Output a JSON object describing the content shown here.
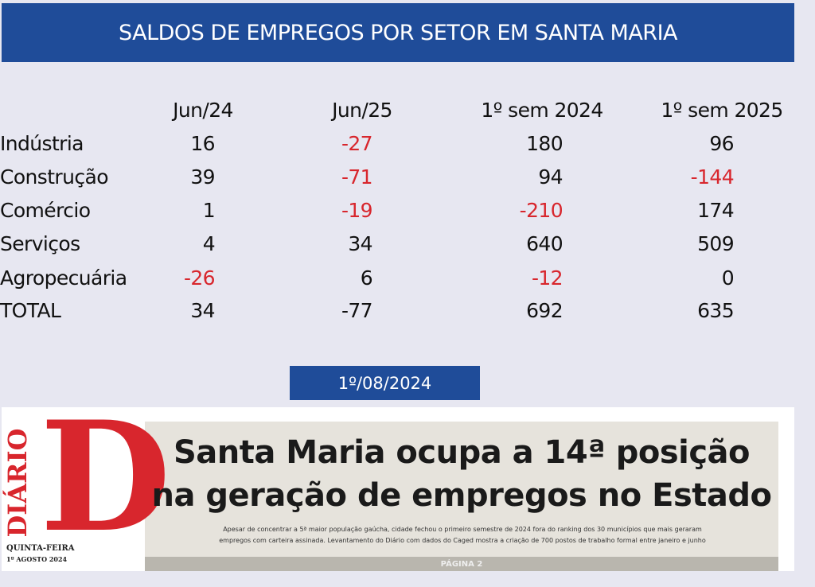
{
  "header": {
    "title": "SALDOS DE EMPREGOS POR SETOR EM SANTA MARIA"
  },
  "table": {
    "columns": [
      "Jun/24",
      "Jun/25",
      "1º sem 2024",
      "1º sem 2025"
    ],
    "rows": [
      {
        "label": "Indústria",
        "values": [
          16,
          -27,
          180,
          96
        ]
      },
      {
        "label": "Construção",
        "values": [
          39,
          -71,
          94,
          -144
        ]
      },
      {
        "label": "Comércio",
        "values": [
          1,
          -19,
          -210,
          174
        ]
      },
      {
        "label": "Serviços",
        "values": [
          4,
          34,
          640,
          509
        ]
      },
      {
        "label": "Agropecuária",
        "values": [
          -26,
          6,
          -12,
          0
        ]
      }
    ],
    "total": {
      "label": "TOTAL",
      "values": [
        34,
        -77,
        692,
        635
      ]
    },
    "negative_color": "#d8262d"
  },
  "date": "1º/08/2024",
  "clipping": {
    "logo_word": "DIÁRIO",
    "logo_letter": "D",
    "weekday": "QUINTA-FEIRA",
    "issue_date": "1º AGOSTO 2024",
    "headline": [
      "Santa Maria ocupa a 14ª posição",
      "na geração de empregos no Estado"
    ],
    "subheadline": [
      "Apesar de concentrar a 5ª maior população gaúcha, cidade fechou o primeiro semestre de 2024 fora do ranking dos 30 municípios que mais geraram",
      "empregos com carteira assinada. Levantamento do Diário com dados do Caged mostra a criação de 700 postos de trabalho formal entre janeiro e junho"
    ],
    "page": "PÁGINA 2"
  }
}
